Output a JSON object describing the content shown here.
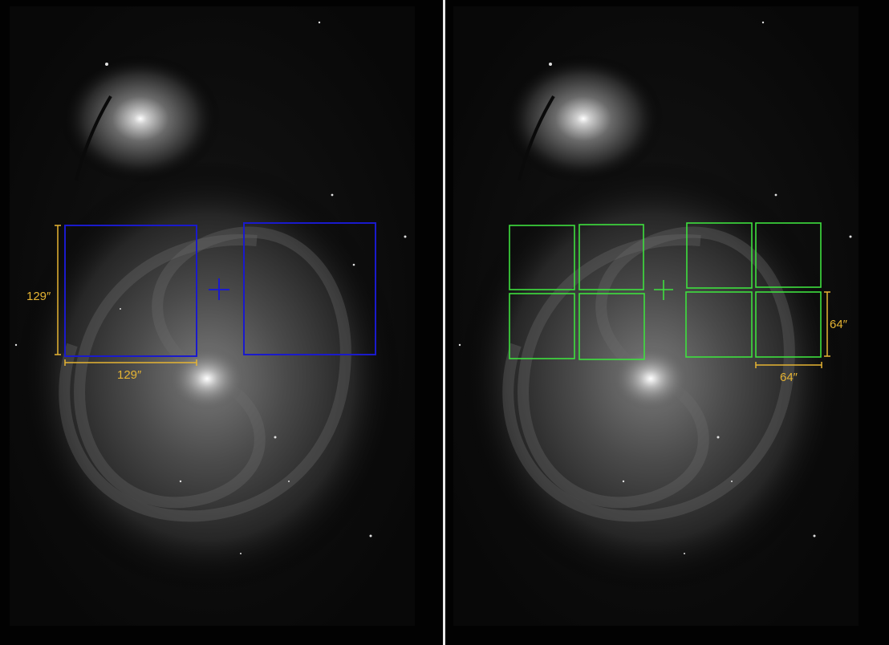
{
  "colors": {
    "background": "#000000",
    "divider": "#e9e9e9",
    "footprint_left": "#1a1acc",
    "footprint_right": "#3ee03e",
    "dimension": "#e6b433"
  },
  "left_panel": {
    "height_label": "129″",
    "width_label": "129″"
  },
  "right_panel": {
    "height_label": "64″",
    "width_label": "64″"
  }
}
